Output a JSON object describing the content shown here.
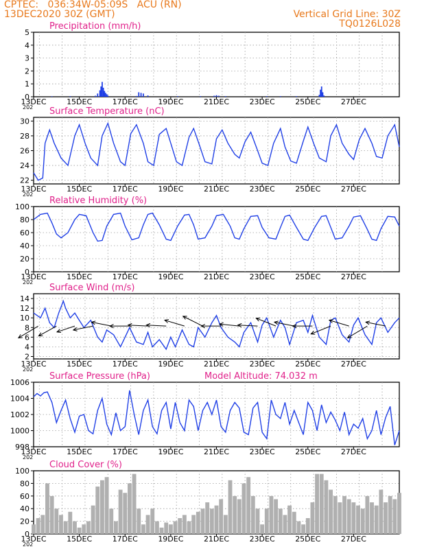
{
  "header": {
    "line1": "CPTEC:   036:34W-05:09S   ACU (RN)",
    "line2": "13DEC2020 30Z (GMT)",
    "right1": "Vertical Grid Line: 30Z",
    "right2": "TQ0126L028"
  },
  "colors": {
    "header": "#e8791c",
    "title": "#e0208a",
    "line": "#1f3fe6",
    "cloud": "#b0b0b0",
    "grid": "#9a9a9a",
    "arrow": "#000000"
  },
  "x_ticks": [
    "13DEC",
    "15DEC",
    "17DEC",
    "19DEC",
    "21DEC",
    "23DEC",
    "25DEC",
    "27DEC"
  ],
  "x_range_days": [
    13.0,
    29.0
  ],
  "year_fragment": "202",
  "chart_data": [
    {
      "id": "precip",
      "type": "bar",
      "title": "Precipitation (mm/h)",
      "ylim": [
        0,
        5
      ],
      "yticks": [
        0,
        1,
        2,
        3,
        4,
        5
      ],
      "grid": true,
      "x": [
        13.8,
        14.6,
        15.7,
        15.8,
        15.9,
        15.95,
        16.0,
        16.05,
        16.1,
        16.15,
        16.2,
        16.25,
        17.5,
        17.6,
        17.7,
        17.8,
        18.0,
        19.3,
        20.3,
        20.9,
        21.0,
        21.1,
        21.4,
        23.2,
        23.8,
        24.5,
        25.5,
        25.55,
        25.6,
        25.65,
        25.7
      ],
      "values": [
        0.04,
        0.05,
        0.08,
        0.25,
        0.5,
        0.8,
        1.15,
        0.7,
        0.45,
        0.3,
        0.2,
        0.1,
        0.06,
        0.35,
        0.3,
        0.25,
        0.1,
        0.05,
        0.05,
        0.08,
        0.12,
        0.08,
        0.05,
        0.05,
        0.05,
        0.05,
        0.15,
        0.55,
        0.8,
        0.35,
        0.1
      ]
    },
    {
      "id": "temp",
      "type": "line",
      "title": "Surface Temperature (nC)",
      "ylim": [
        21.5,
        30.5
      ],
      "yticks": [
        22,
        24,
        26,
        28,
        30
      ],
      "grid": true,
      "x": [
        13.0,
        13.2,
        13.4,
        13.5,
        13.7,
        13.9,
        14.2,
        14.5,
        14.8,
        15.0,
        15.25,
        15.5,
        15.8,
        16.0,
        16.25,
        16.5,
        16.8,
        17.0,
        17.25,
        17.5,
        17.8,
        18.0,
        18.25,
        18.5,
        18.8,
        19.0,
        19.25,
        19.5,
        19.8,
        20.0,
        20.25,
        20.5,
        20.8,
        21.0,
        21.25,
        21.5,
        21.8,
        22.0,
        22.25,
        22.5,
        22.8,
        23.0,
        23.25,
        23.5,
        23.8,
        24.0,
        24.25,
        24.5,
        24.8,
        25.0,
        25.25,
        25.5,
        25.8,
        26.0,
        26.25,
        26.5,
        26.8,
        27.0,
        27.25,
        27.5,
        27.8,
        28.0,
        28.25,
        28.5,
        28.8,
        29.0
      ],
      "values": [
        23.0,
        22.0,
        22.3,
        27.0,
        28.8,
        27.0,
        25.0,
        24.0,
        28.0,
        29.5,
        27.0,
        25.0,
        24.0,
        28.0,
        29.7,
        27.0,
        24.5,
        24.0,
        28.3,
        29.5,
        27.0,
        24.5,
        24.0,
        28.2,
        29.0,
        27.0,
        24.5,
        24.0,
        27.8,
        29.0,
        26.8,
        24.5,
        24.2,
        27.6,
        28.8,
        27.0,
        25.5,
        25.0,
        27.2,
        28.5,
        26.0,
        24.3,
        24.0,
        27.0,
        29.0,
        26.5,
        24.6,
        24.3,
        27.3,
        29.2,
        27.0,
        25.0,
        24.5,
        28.0,
        29.5,
        27.0,
        25.5,
        24.8,
        27.5,
        29.0,
        27.0,
        25.2,
        25.0,
        28.0,
        29.5,
        26.5
      ]
    },
    {
      "id": "rh",
      "type": "line",
      "title": "Relative Humidity (%)",
      "ylim": [
        0,
        100
      ],
      "yticks": [
        0,
        20,
        40,
        60,
        80,
        100
      ],
      "grid": true,
      "x": [
        13.0,
        13.3,
        13.6,
        13.8,
        14.0,
        14.2,
        14.5,
        14.8,
        15.0,
        15.3,
        15.6,
        15.8,
        16.0,
        16.2,
        16.5,
        16.8,
        17.0,
        17.3,
        17.6,
        17.8,
        18.0,
        18.2,
        18.5,
        18.8,
        19.0,
        19.3,
        19.6,
        19.8,
        20.0,
        20.2,
        20.5,
        20.8,
        21.0,
        21.3,
        21.6,
        21.8,
        22.0,
        22.2,
        22.5,
        22.8,
        23.0,
        23.3,
        23.6,
        23.8,
        24.0,
        24.2,
        24.5,
        24.8,
        25.0,
        25.3,
        25.6,
        25.8,
        26.0,
        26.2,
        26.5,
        26.8,
        27.0,
        27.3,
        27.6,
        27.8,
        28.0,
        28.2,
        28.5,
        28.8,
        29.0
      ],
      "values": [
        80.0,
        88.0,
        90.0,
        75.0,
        58.0,
        52.0,
        60.0,
        80.0,
        88.0,
        86.0,
        60.0,
        47.0,
        48.0,
        70.0,
        88.0,
        90.0,
        70.0,
        49.0,
        52.0,
        72.0,
        88.0,
        90.0,
        72.0,
        50.0,
        48.0,
        70.0,
        87.0,
        88.0,
        72.0,
        50.0,
        52.0,
        70.0,
        86.0,
        88.0,
        70.0,
        52.0,
        50.0,
        66.0,
        85.0,
        86.0,
        68.0,
        52.0,
        50.0,
        68.0,
        85.0,
        87.0,
        68.0,
        50.0,
        48.0,
        68.0,
        85.0,
        86.0,
        68.0,
        50.0,
        52.0,
        70.0,
        84.0,
        86.0,
        65.0,
        50.0,
        48.0,
        66.0,
        85.0,
        84.0,
        70.0
      ]
    },
    {
      "id": "wind",
      "type": "line",
      "title": "Surface Wind (m/s)",
      "ylim": [
        1.5,
        15
      ],
      "yticks": [
        2,
        4,
        6,
        8,
        10,
        12,
        14
      ],
      "grid": true,
      "x": [
        13.0,
        13.3,
        13.5,
        13.7,
        13.9,
        14.1,
        14.3,
        14.4,
        14.6,
        14.8,
        15.0,
        15.2,
        15.5,
        15.8,
        16.0,
        16.2,
        16.5,
        16.8,
        17.0,
        17.2,
        17.5,
        17.8,
        18.0,
        18.2,
        18.5,
        18.8,
        19.0,
        19.2,
        19.5,
        19.8,
        20.0,
        20.2,
        20.5,
        20.8,
        21.0,
        21.2,
        21.5,
        21.8,
        22.0,
        22.2,
        22.5,
        22.8,
        23.0,
        23.2,
        23.5,
        23.8,
        24.0,
        24.2,
        24.5,
        24.8,
        25.0,
        25.2,
        25.5,
        25.8,
        26.0,
        26.2,
        26.5,
        26.8,
        27.0,
        27.2,
        27.5,
        27.8,
        28.0,
        28.2,
        28.5,
        28.8,
        29.0
      ],
      "values": [
        11.0,
        10.0,
        12.0,
        9.0,
        8.0,
        11.0,
        13.5,
        12.0,
        10.0,
        11.0,
        9.5,
        8.0,
        9.5,
        6.0,
        5.0,
        7.5,
        6.5,
        4.0,
        6.0,
        8.0,
        5.0,
        4.5,
        7.0,
        4.0,
        5.5,
        3.5,
        6.0,
        4.0,
        7.5,
        4.5,
        4.0,
        8.0,
        6.0,
        9.0,
        10.5,
        8.0,
        6.0,
        5.0,
        4.0,
        7.0,
        9.0,
        5.0,
        8.5,
        10.0,
        6.0,
        9.5,
        8.0,
        4.5,
        9.0,
        9.5,
        7.0,
        10.5,
        6.0,
        4.5,
        9.5,
        10.0,
        6.5,
        5.0,
        8.5,
        10.0,
        6.5,
        4.5,
        9.0,
        10.0,
        7.0,
        9.0,
        10.0
      ],
      "vectors": [
        {
          "x": 13.2,
          "u": -1.0,
          "v": -0.6
        },
        {
          "x": 14.0,
          "u": -0.9,
          "v": -0.5
        },
        {
          "x": 14.8,
          "u": -0.9,
          "v": -0.3
        },
        {
          "x": 15.6,
          "u": -1.0,
          "v": -0.2
        },
        {
          "x": 16.4,
          "u": -1.0,
          "v": 0.2
        },
        {
          "x": 17.2,
          "u": -1.0,
          "v": 0.0
        },
        {
          "x": 18.0,
          "u": -1.0,
          "v": 0.05
        },
        {
          "x": 18.8,
          "u": -1.0,
          "v": 0.05
        },
        {
          "x": 19.6,
          "u": -1.0,
          "v": 0.3
        },
        {
          "x": 20.4,
          "u": -1.0,
          "v": 0.5
        },
        {
          "x": 21.2,
          "u": -1.0,
          "v": 0.0
        },
        {
          "x": 22.0,
          "u": -1.0,
          "v": 0.1
        },
        {
          "x": 22.8,
          "u": -1.0,
          "v": 0.05
        },
        {
          "x": 23.6,
          "u": -1.0,
          "v": 0.4
        },
        {
          "x": 24.4,
          "u": -1.0,
          "v": 0.2
        },
        {
          "x": 25.2,
          "u": -1.0,
          "v": 0.0
        },
        {
          "x": 26.0,
          "u": -1.0,
          "v": -0.4
        },
        {
          "x": 26.8,
          "u": -1.0,
          "v": 0.3
        },
        {
          "x": 27.6,
          "u": -1.0,
          "v": -0.6
        },
        {
          "x": 28.4,
          "u": -1.0,
          "v": 0.2
        }
      ]
    },
    {
      "id": "pres",
      "type": "line",
      "title": "Surface Pressure (hPa)",
      "extra_label": "Model Altitude: 74.032 m",
      "ylim": [
        998,
        1006
      ],
      "yticks": [
        998,
        1000,
        1002,
        1004,
        1006
      ],
      "grid": true,
      "x": [
        13.0,
        13.15,
        13.3,
        13.45,
        13.6,
        13.8,
        14.0,
        14.2,
        14.4,
        14.6,
        14.8,
        15.0,
        15.2,
        15.4,
        15.6,
        15.8,
        16.0,
        16.2,
        16.4,
        16.6,
        16.8,
        17.0,
        17.2,
        17.4,
        17.6,
        17.8,
        18.0,
        18.2,
        18.4,
        18.6,
        18.8,
        19.0,
        19.2,
        19.4,
        19.6,
        19.8,
        20.0,
        20.2,
        20.4,
        20.6,
        20.8,
        21.0,
        21.2,
        21.4,
        21.6,
        21.8,
        22.0,
        22.2,
        22.4,
        22.6,
        22.8,
        23.0,
        23.2,
        23.4,
        23.6,
        23.8,
        24.0,
        24.2,
        24.4,
        24.6,
        24.8,
        25.0,
        25.2,
        25.4,
        25.6,
        25.8,
        26.0,
        26.2,
        26.4,
        26.6,
        26.8,
        27.0,
        27.2,
        27.4,
        27.6,
        27.8,
        28.0,
        28.2,
        28.4,
        28.6,
        28.8,
        29.0
      ],
      "values": [
        1004.2,
        1004.6,
        1004.3,
        1004.7,
        1004.8,
        1003.5,
        1001.0,
        1002.5,
        1003.8,
        1001.5,
        999.8,
        1001.8,
        1002.0,
        1000.0,
        999.6,
        1002.5,
        1004.0,
        1000.8,
        999.5,
        1002.2,
        1000.0,
        1000.5,
        1005.0,
        1002.0,
        999.5,
        1002.5,
        1003.8,
        1000.5,
        999.6,
        1002.5,
        1003.5,
        1000.2,
        1003.5,
        1001.0,
        1000.0,
        1003.8,
        1003.0,
        1000.0,
        1002.5,
        1003.5,
        1002.0,
        1003.8,
        1000.5,
        999.8,
        1002.5,
        1003.5,
        1002.8,
        999.8,
        999.5,
        1002.8,
        1003.5,
        999.8,
        999.0,
        1003.8,
        1002.0,
        1001.5,
        1003.5,
        1000.8,
        1002.5,
        1001.0,
        999.5,
        1003.5,
        1002.5,
        1000.0,
        1003.2,
        1001.0,
        1002.3,
        1001.3,
        1000.0,
        1002.3,
        999.5,
        1000.8,
        1000.3,
        1001.5,
        999.0,
        1000.0,
        1002.5,
        999.5,
        1001.6,
        1003.0,
        998.2,
        1000.0
      ]
    },
    {
      "id": "cloud",
      "type": "area",
      "title": "Cloud Cover (%)",
      "ylim": [
        0,
        100
      ],
      "yticks": [
        0,
        20,
        40,
        60,
        80,
        100
      ],
      "grid": true,
      "x": [
        13.0,
        13.2,
        13.4,
        13.6,
        13.8,
        14.0,
        14.2,
        14.4,
        14.6,
        14.8,
        15.0,
        15.2,
        15.4,
        15.6,
        15.8,
        16.0,
        16.2,
        16.4,
        16.6,
        16.8,
        17.0,
        17.2,
        17.4,
        17.6,
        17.8,
        18.0,
        18.2,
        18.4,
        18.6,
        18.8,
        19.0,
        19.2,
        19.4,
        19.6,
        19.8,
        20.0,
        20.2,
        20.4,
        20.6,
        20.8,
        21.0,
        21.2,
        21.4,
        21.6,
        21.8,
        22.0,
        22.2,
        22.4,
        22.6,
        22.8,
        23.0,
        23.2,
        23.4,
        23.6,
        23.8,
        24.0,
        24.2,
        24.4,
        24.6,
        24.8,
        25.0,
        25.2,
        25.4,
        25.6,
        25.8,
        26.0,
        26.2,
        26.4,
        26.6,
        26.8,
        27.0,
        27.2,
        27.4,
        27.6,
        27.8,
        28.0,
        28.2,
        28.4,
        28.6,
        28.8,
        29.0
      ],
      "values": [
        15,
        25,
        30,
        80,
        60,
        40,
        30,
        20,
        35,
        20,
        10,
        15,
        20,
        45,
        75,
        85,
        90,
        40,
        20,
        70,
        65,
        80,
        95,
        40,
        15,
        30,
        40,
        20,
        10,
        18,
        15,
        20,
        25,
        30,
        20,
        30,
        35,
        40,
        50,
        40,
        45,
        55,
        30,
        85,
        60,
        55,
        80,
        90,
        60,
        40,
        15,
        40,
        60,
        55,
        40,
        30,
        45,
        35,
        20,
        15,
        25,
        50,
        95,
        95,
        85,
        70,
        60,
        50,
        60,
        55,
        50,
        45,
        40,
        60,
        50,
        45,
        70,
        50,
        60,
        55,
        65
      ]
    }
  ]
}
